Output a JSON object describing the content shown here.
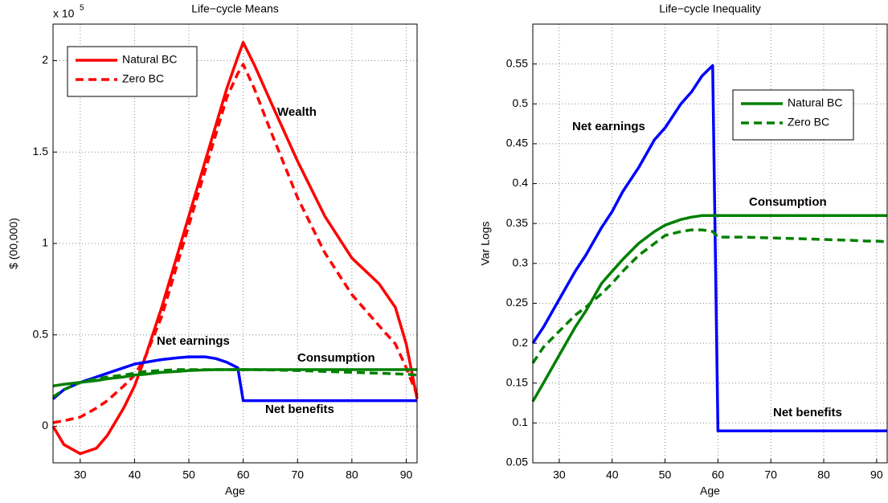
{
  "chart_data": [
    {
      "type": "line",
      "title": "Life−cycle Means",
      "x_label": "Age",
      "y_label": "$ (00,000)",
      "multiplier": {
        "base": "x 10",
        "exponent": "5"
      },
      "x": [
        25,
        27,
        30,
        33,
        35,
        38,
        40,
        42,
        45,
        48,
        50,
        53,
        55,
        57,
        59,
        60,
        62,
        65,
        70,
        75,
        80,
        85,
        88,
        90,
        92
      ],
      "xlim": [
        25,
        92
      ],
      "xticks": [
        30,
        40,
        50,
        60,
        70,
        80,
        90
      ],
      "ylim": [
        -0.2,
        2.2
      ],
      "yticks": [
        0,
        0.5,
        1,
        1.5,
        2
      ],
      "grid": true,
      "series": [
        {
          "color": "#ff0000",
          "dash": "solid",
          "values": [
            0,
            -0.1,
            -0.15,
            -0.12,
            -0.05,
            0.1,
            0.22,
            0.38,
            0.65,
            0.95,
            1.15,
            1.45,
            1.65,
            1.85,
            2.02,
            2.1,
            1.98,
            1.78,
            1.45,
            1.15,
            0.92,
            0.78,
            0.65,
            0.45,
            0.15
          ]
        },
        {
          "color": "#ff0000",
          "dash": "dashed",
          "values": [
            0.02,
            0.03,
            0.05,
            0.1,
            0.14,
            0.22,
            0.28,
            0.38,
            0.6,
            0.9,
            1.1,
            1.4,
            1.6,
            1.8,
            1.93,
            1.98,
            1.85,
            1.62,
            1.25,
            0.95,
            0.72,
            0.55,
            0.45,
            0.32,
            0.17
          ]
        },
        {
          "color": "#0000ff",
          "dash": "solid",
          "values": [
            0.15,
            0.2,
            0.24,
            0.27,
            0.29,
            0.32,
            0.34,
            0.35,
            0.365,
            0.375,
            0.38,
            0.38,
            0.37,
            0.35,
            0.32,
            0.14,
            0.14,
            0.14,
            0.14,
            0.14,
            0.14,
            0.14,
            0.14,
            0.14,
            0.14
          ]
        },
        {
          "color": "#008000",
          "dash": "dashed",
          "values": [
            0.16,
            0.2,
            0.24,
            0.26,
            0.27,
            0.28,
            0.29,
            0.3,
            0.305,
            0.31,
            0.31,
            0.31,
            0.31,
            0.31,
            0.31,
            0.31,
            0.31,
            0.308,
            0.305,
            0.3,
            0.295,
            0.29,
            0.287,
            0.285,
            0.28
          ]
        },
        {
          "color": "#008000",
          "dash": "solid",
          "values": [
            0.22,
            0.23,
            0.24,
            0.25,
            0.26,
            0.27,
            0.28,
            0.285,
            0.295,
            0.3,
            0.305,
            0.308,
            0.31,
            0.31,
            0.31,
            0.31,
            0.31,
            0.31,
            0.31,
            0.31,
            0.31,
            0.31,
            0.31,
            0.31,
            0.31
          ]
        }
      ],
      "legend": {
        "corner": "upper left",
        "entries": [
          {
            "label": "Natural BC",
            "color": "#ff0000",
            "dash": "solid"
          },
          {
            "label": "Zero BC",
            "color": "#ff0000",
            "dash": "dashed"
          }
        ]
      },
      "annotations": [
        "Wealth",
        "Net earnings",
        "Consumption",
        "Net benefits"
      ]
    },
    {
      "type": "line",
      "title": "Life−cycle Inequality",
      "x_label": "Age",
      "y_label": "Var Logs",
      "x": [
        25,
        27,
        30,
        33,
        35,
        38,
        40,
        42,
        45,
        48,
        50,
        53,
        55,
        57,
        59,
        60,
        62,
        65,
        70,
        75,
        80,
        85,
        88,
        90,
        92
      ],
      "xlim": [
        25,
        92
      ],
      "xticks": [
        30,
        40,
        50,
        60,
        70,
        80,
        90
      ],
      "ylim": [
        0.05,
        0.6
      ],
      "yticks": [
        0.05,
        0.1,
        0.15,
        0.2,
        0.25,
        0.3,
        0.35,
        0.4,
        0.45,
        0.5,
        0.55
      ],
      "grid": true,
      "series": [
        {
          "color": "#0000ff",
          "dash": "solid",
          "values": [
            0.2,
            0.22,
            0.255,
            0.29,
            0.31,
            0.345,
            0.365,
            0.39,
            0.42,
            0.455,
            0.47,
            0.5,
            0.515,
            0.535,
            0.548,
            0.09,
            0.09,
            0.09,
            0.09,
            0.09,
            0.09,
            0.09,
            0.09,
            0.09,
            0.09
          ]
        },
        {
          "color": "#008000",
          "dash": "dashed",
          "values": [
            0.175,
            0.195,
            0.215,
            0.235,
            0.245,
            0.262,
            0.275,
            0.29,
            0.31,
            0.325,
            0.335,
            0.34,
            0.342,
            0.342,
            0.34,
            0.333,
            0.333,
            0.333,
            0.332,
            0.331,
            0.33,
            0.329,
            0.328,
            0.328,
            0.327
          ]
        },
        {
          "color": "#008000",
          "dash": "solid",
          "values": [
            0.127,
            0.15,
            0.185,
            0.22,
            0.24,
            0.275,
            0.29,
            0.305,
            0.325,
            0.34,
            0.348,
            0.355,
            0.358,
            0.36,
            0.36,
            0.36,
            0.36,
            0.36,
            0.36,
            0.36,
            0.36,
            0.36,
            0.36,
            0.36,
            0.36
          ]
        }
      ],
      "legend": {
        "corner": "upper right",
        "entries": [
          {
            "label": "Natural BC",
            "color": "#008000",
            "dash": "solid"
          },
          {
            "label": "Zero BC",
            "color": "#008000",
            "dash": "dashed"
          }
        ]
      },
      "annotations": [
        "Net earnings",
        "Consumption",
        "Net benefits"
      ]
    }
  ]
}
